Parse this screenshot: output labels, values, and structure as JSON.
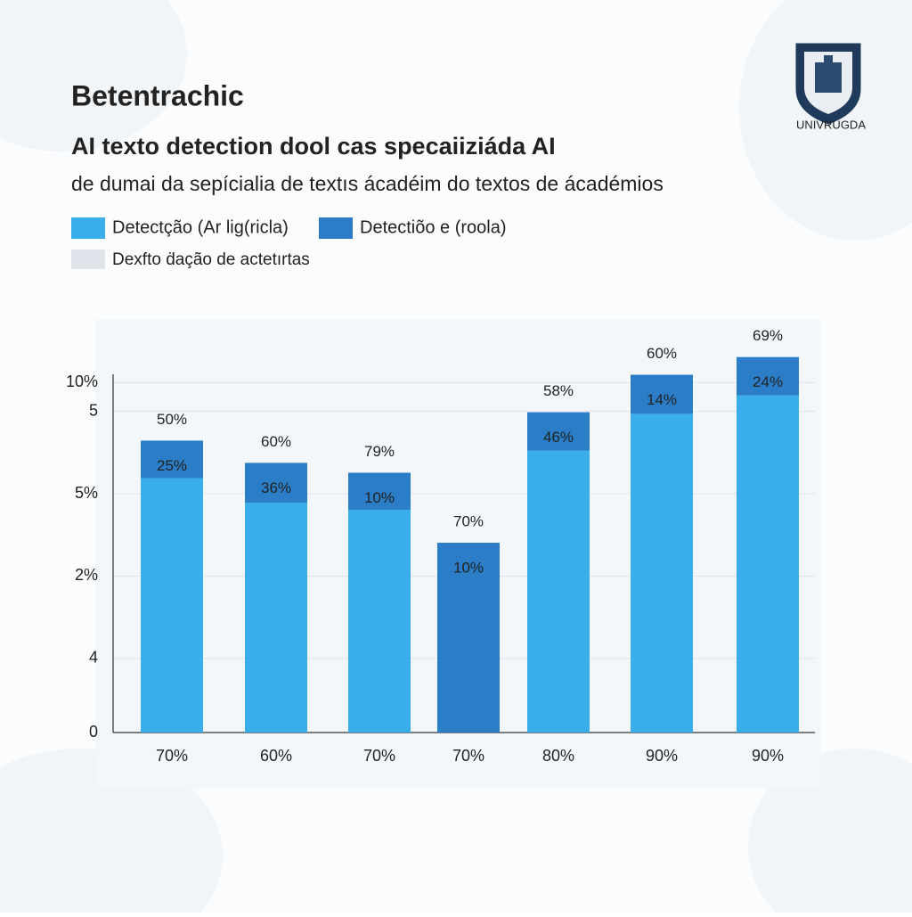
{
  "header": "Betentrachic",
  "logo_text": "UNIVRUGDA",
  "chart_data": {
    "type": "stacked-bar",
    "title": "AI texto detection dool cas specaiiziáda AI",
    "subtitle": "de dumai da sepícialia de textıs ácadéim do textos de ácadémios",
    "categories": [
      "70%",
      "60%",
      "70%",
      "70%",
      "80%",
      "90%",
      "90%"
    ],
    "series": [
      {
        "name": "Detectção (Ar lig(ricla)",
        "color": "#3aaeea",
        "values": [
          61.8,
          55.8,
          54.1,
          0,
          68.5,
          77.4,
          81.9
        ]
      },
      {
        "name": "Detectiõo e (roola)",
        "color": "#2a7dc6",
        "values": [
          9.1,
          9.7,
          9,
          46.1,
          9.3,
          9.5,
          9.3
        ]
      }
    ],
    "legend_items": [
      {
        "name": "Dexfto ḋação de actetırtas",
        "color": "#dfe4ea"
      }
    ],
    "inner_labels": [
      "25%",
      "36%",
      "10%",
      "10%",
      "46%",
      "14%",
      "24%"
    ],
    "top_labels": [
      "50%",
      "60%",
      "79%",
      "70%",
      "58%",
      "60%",
      "69%"
    ],
    "ylim": [
      0,
      100
    ],
    "yticks": [
      0,
      {
        "value": 18,
        "label": "4"
      },
      {
        "value": 38,
        "label": "2%"
      },
      {
        "value": 58,
        "label": "5%"
      },
      {
        "value": 78,
        "label": "5"
      },
      {
        "value": 85,
        "label": "10%"
      }
    ],
    "grid": true
  }
}
